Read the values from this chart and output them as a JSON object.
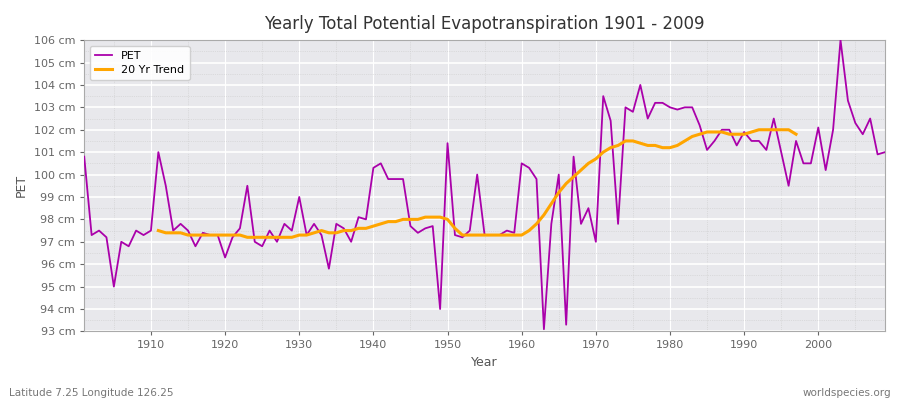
{
  "title": "Yearly Total Potential Evapotranspiration 1901 - 2009",
  "xlabel": "Year",
  "ylabel": "PET",
  "bottom_left": "Latitude 7.25 Longitude 126.25",
  "bottom_right": "worldspecies.org",
  "pet_color": "#aa00aa",
  "trend_color": "#ffa500",
  "bg_color": "#ffffff",
  "plot_bg_color": "#e8e8ec",
  "grid_color": "#ffffff",
  "grid_minor_color": "#ccccdd",
  "ylim_min": 93,
  "ylim_max": 106,
  "years": [
    1901,
    1902,
    1903,
    1904,
    1905,
    1906,
    1907,
    1908,
    1909,
    1910,
    1911,
    1912,
    1913,
    1914,
    1915,
    1916,
    1917,
    1918,
    1919,
    1920,
    1921,
    1922,
    1923,
    1924,
    1925,
    1926,
    1927,
    1928,
    1929,
    1930,
    1931,
    1932,
    1933,
    1934,
    1935,
    1936,
    1937,
    1938,
    1939,
    1940,
    1941,
    1942,
    1943,
    1944,
    1945,
    1946,
    1947,
    1948,
    1949,
    1950,
    1951,
    1952,
    1953,
    1954,
    1955,
    1956,
    1957,
    1958,
    1959,
    1960,
    1961,
    1962,
    1963,
    1964,
    1965,
    1966,
    1967,
    1968,
    1969,
    1970,
    1971,
    1972,
    1973,
    1974,
    1975,
    1976,
    1977,
    1978,
    1979,
    1980,
    1981,
    1982,
    1983,
    1984,
    1985,
    1986,
    1987,
    1988,
    1989,
    1990,
    1991,
    1992,
    1993,
    1994,
    1995,
    1996,
    1997,
    1998,
    1999,
    2000,
    2001,
    2002,
    2003,
    2004,
    2005,
    2006,
    2007,
    2008,
    2009
  ],
  "pet_values": [
    100.8,
    97.3,
    97.5,
    97.2,
    95.0,
    97.0,
    96.8,
    97.5,
    97.3,
    97.5,
    101.0,
    99.5,
    97.5,
    97.8,
    97.5,
    96.8,
    97.4,
    97.3,
    97.3,
    96.3,
    97.2,
    97.6,
    99.5,
    97.0,
    96.8,
    97.5,
    97.0,
    97.8,
    97.5,
    99.0,
    97.3,
    97.8,
    97.3,
    95.8,
    97.8,
    97.6,
    97.0,
    98.1,
    98.0,
    100.3,
    100.5,
    99.8,
    99.8,
    99.8,
    97.7,
    97.4,
    97.6,
    97.7,
    94.0,
    101.4,
    97.3,
    97.2,
    97.5,
    100.0,
    97.3,
    97.3,
    97.3,
    97.5,
    97.4,
    100.5,
    100.3,
    99.8,
    93.1,
    97.8,
    100.0,
    93.3,
    100.8,
    97.8,
    98.5,
    97.0,
    103.5,
    102.4,
    97.8,
    103.0,
    102.8,
    104.0,
    102.5,
    103.2,
    103.2,
    103.0,
    102.9,
    103.0,
    103.0,
    102.2,
    101.1,
    101.5,
    102.0,
    102.0,
    101.3,
    101.9,
    101.5,
    101.5,
    101.1,
    102.5,
    101.0,
    99.5,
    101.5,
    100.5,
    100.5,
    102.1,
    100.2,
    102.0,
    106.0,
    103.3,
    102.3,
    101.8,
    102.5,
    100.9,
    101.0
  ],
  "trend_values": [
    null,
    null,
    null,
    null,
    null,
    null,
    null,
    null,
    null,
    null,
    97.5,
    97.4,
    97.4,
    97.4,
    97.3,
    97.3,
    97.3,
    97.3,
    97.3,
    97.3,
    97.3,
    97.3,
    97.2,
    97.2,
    97.2,
    97.2,
    97.2,
    97.2,
    97.2,
    97.3,
    97.3,
    97.4,
    97.5,
    97.4,
    97.4,
    97.5,
    97.5,
    97.6,
    97.6,
    97.7,
    97.8,
    97.9,
    97.9,
    98.0,
    98.0,
    98.0,
    98.1,
    98.1,
    98.1,
    98.0,
    97.6,
    97.3,
    97.3,
    97.3,
    97.3,
    97.3,
    97.3,
    97.3,
    97.3,
    97.3,
    97.5,
    97.8,
    98.2,
    98.7,
    99.2,
    99.6,
    99.9,
    100.2,
    100.5,
    100.7,
    101.0,
    101.2,
    101.3,
    101.5,
    101.5,
    101.4,
    101.3,
    101.3,
    101.2,
    101.2,
    101.3,
    101.5,
    101.7,
    101.8,
    101.9,
    101.9,
    101.9,
    101.8,
    101.8,
    101.8,
    101.9,
    102.0,
    102.0,
    102.0,
    102.0,
    102.0,
    101.8,
    null,
    null,
    null,
    null,
    null,
    null,
    null,
    null,
    null,
    null,
    null,
    null
  ]
}
